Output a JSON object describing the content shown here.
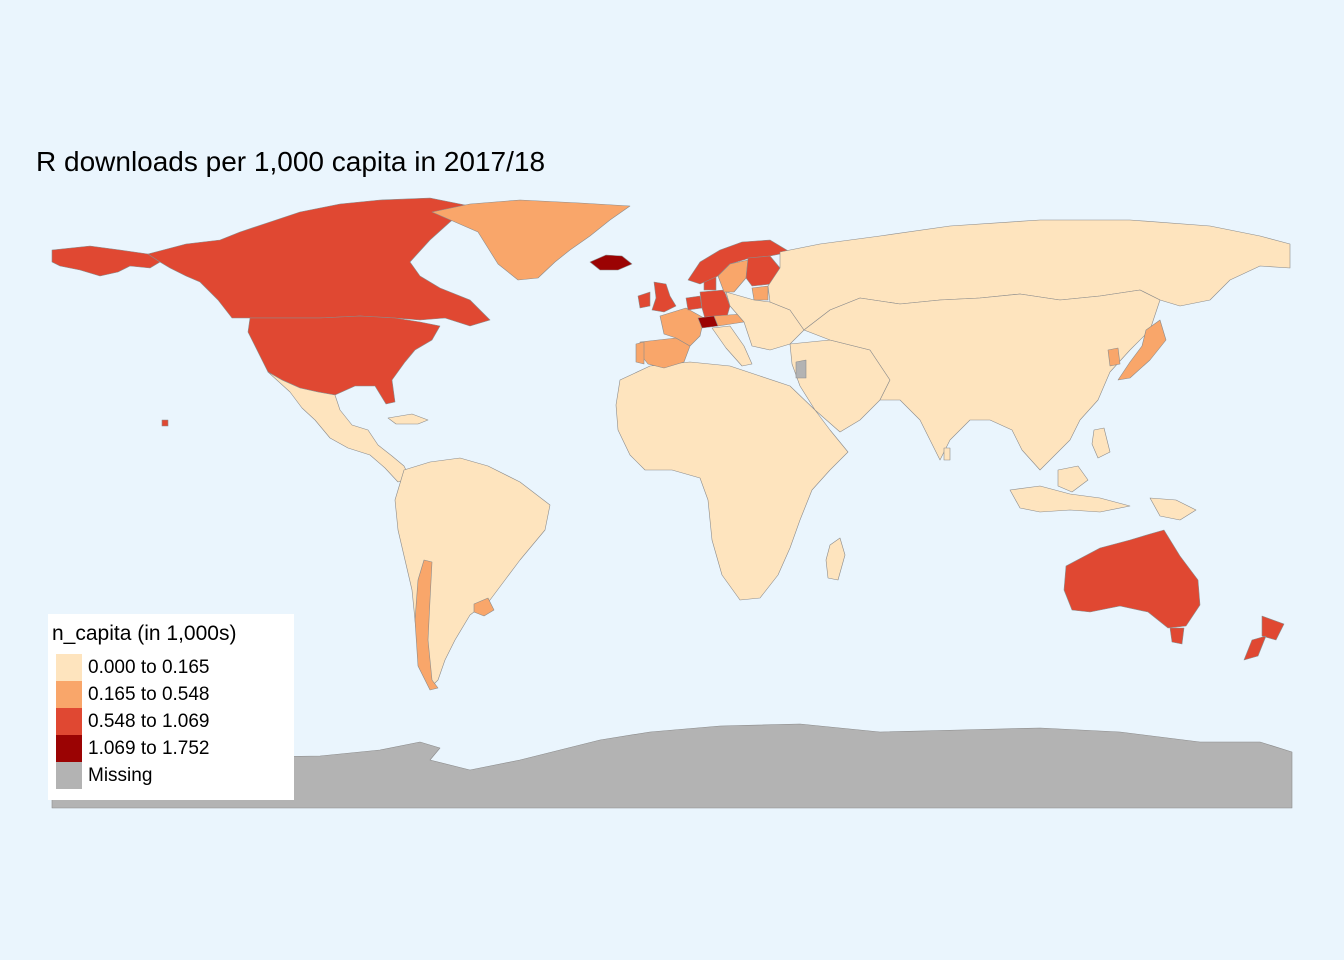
{
  "title": "R downloads per 1,000 capita in 2017/18",
  "legend": {
    "title": "n_capita (in 1,000s)",
    "classes": [
      {
        "label": "0.000 to 0.165",
        "color": "#fee4be"
      },
      {
        "label": "0.165 to 0.548",
        "color": "#f9a66a"
      },
      {
        "label": "0.548 to 1.069",
        "color": "#e04832"
      },
      {
        "label": "1.069 to 1.752",
        "color": "#9b0303"
      },
      {
        "label": "Missing",
        "color": "#b3b3b3"
      }
    ]
  },
  "colors": {
    "ocean": "#eaf5fd",
    "border": "#8c8c8c",
    "legend_background": "#ffffff"
  },
  "regions": [
    {
      "name": "Canada",
      "class": 2
    },
    {
      "name": "United States",
      "class": 2
    },
    {
      "name": "Alaska",
      "class": 2
    },
    {
      "name": "Greenland",
      "class": 1
    },
    {
      "name": "Iceland",
      "class": 3
    },
    {
      "name": "Norway",
      "class": 2
    },
    {
      "name": "Sweden",
      "class": 1
    },
    {
      "name": "Finland",
      "class": 2
    },
    {
      "name": "United Kingdom",
      "class": 2
    },
    {
      "name": "Ireland",
      "class": 2
    },
    {
      "name": "Denmark",
      "class": 2
    },
    {
      "name": "Netherlands",
      "class": 2
    },
    {
      "name": "Germany",
      "class": 2
    },
    {
      "name": "France",
      "class": 1
    },
    {
      "name": "Spain",
      "class": 1
    },
    {
      "name": "Portugal",
      "class": 1
    },
    {
      "name": "Switzerland",
      "class": 3
    },
    {
      "name": "Austria",
      "class": 1
    },
    {
      "name": "Italy",
      "class": 0
    },
    {
      "name": "Estonia",
      "class": 1
    },
    {
      "name": "Eastern Europe",
      "class": 0
    },
    {
      "name": "Russia",
      "class": 0
    },
    {
      "name": "Asia",
      "class": 0
    },
    {
      "name": "Japan",
      "class": 1
    },
    {
      "name": "South Korea",
      "class": 1
    },
    {
      "name": "Middle East",
      "class": 0
    },
    {
      "name": "Israel",
      "class": 4
    },
    {
      "name": "Africa",
      "class": 0
    },
    {
      "name": "Madagascar",
      "class": 0
    },
    {
      "name": "Mexico & Central America",
      "class": 0
    },
    {
      "name": "South America",
      "class": 0
    },
    {
      "name": "Chile",
      "class": 1
    },
    {
      "name": "Uruguay",
      "class": 1
    },
    {
      "name": "Australia",
      "class": 2
    },
    {
      "name": "New Zealand",
      "class": 2
    },
    {
      "name": "Indonesia",
      "class": 0
    },
    {
      "name": "Papua New Guinea",
      "class": 0
    },
    {
      "name": "Antarctica",
      "class": 4
    }
  ]
}
